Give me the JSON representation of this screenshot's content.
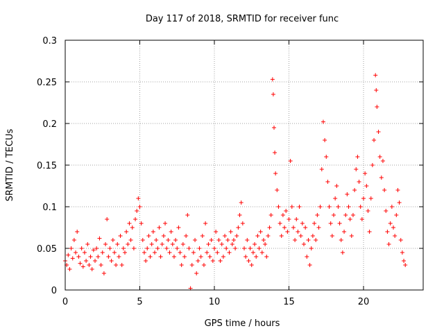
{
  "chart_data": {
    "type": "scatter",
    "title": "Day 117 of 2018, SRMTID for receiver func",
    "xlabel": "GPS time / hours",
    "ylabel": "SRMTID / TECUs",
    "xlim": [
      0,
      24
    ],
    "ylim": [
      0,
      0.3
    ],
    "x_ticks": [
      0,
      5,
      10,
      15,
      20
    ],
    "x_tick_labels": [
      "0",
      "5",
      "10",
      "15",
      "20"
    ],
    "y_ticks": [
      0,
      0.05,
      0.1,
      0.15,
      0.2,
      0.25,
      0.3
    ],
    "y_tick_labels": [
      "0",
      "0.05",
      "0.1",
      "0.15",
      "0.2",
      "0.25",
      "0.3"
    ],
    "grid": true,
    "marker": "+",
    "color": "#ff0000",
    "series": [
      {
        "name": "SRMTID",
        "points": [
          [
            0.0,
            0.035
          ],
          [
            0.1,
            0.03
          ],
          [
            0.2,
            0.042
          ],
          [
            0.3,
            0.025
          ],
          [
            0.4,
            0.05
          ],
          [
            0.5,
            0.038
          ],
          [
            0.6,
            0.06
          ],
          [
            0.7,
            0.045
          ],
          [
            0.8,
            0.07
          ],
          [
            0.9,
            0.04
          ],
          [
            1.0,
            0.032
          ],
          [
            1.1,
            0.05
          ],
          [
            1.2,
            0.028
          ],
          [
            1.3,
            0.045
          ],
          [
            1.4,
            0.035
          ],
          [
            1.5,
            0.055
          ],
          [
            1.6,
            0.03
          ],
          [
            1.7,
            0.04
          ],
          [
            1.8,
            0.025
          ],
          [
            1.9,
            0.048
          ],
          [
            2.0,
            0.035
          ],
          [
            2.1,
            0.05
          ],
          [
            2.2,
            0.04
          ],
          [
            2.3,
            0.062
          ],
          [
            2.4,
            0.03
          ],
          [
            2.5,
            0.045
          ],
          [
            2.6,
            0.02
          ],
          [
            2.7,
            0.055
          ],
          [
            2.8,
            0.085
          ],
          [
            2.9,
            0.04
          ],
          [
            3.0,
            0.05
          ],
          [
            3.1,
            0.035
          ],
          [
            3.2,
            0.06
          ],
          [
            3.3,
            0.045
          ],
          [
            3.4,
            0.03
          ],
          [
            3.5,
            0.055
          ],
          [
            3.6,
            0.04
          ],
          [
            3.7,
            0.065
          ],
          [
            3.8,
            0.03
          ],
          [
            3.9,
            0.05
          ],
          [
            4.0,
            0.045
          ],
          [
            4.1,
            0.07
          ],
          [
            4.2,
            0.055
          ],
          [
            4.3,
            0.08
          ],
          [
            4.4,
            0.06
          ],
          [
            4.5,
            0.075
          ],
          [
            4.6,
            0.05
          ],
          [
            4.7,
            0.085
          ],
          [
            4.8,
            0.095
          ],
          [
            4.9,
            0.11
          ],
          [
            5.0,
            0.1
          ],
          [
            5.1,
            0.08
          ],
          [
            5.2,
            0.06
          ],
          [
            5.3,
            0.045
          ],
          [
            5.4,
            0.035
          ],
          [
            5.5,
            0.05
          ],
          [
            5.6,
            0.065
          ],
          [
            5.7,
            0.04
          ],
          [
            5.8,
            0.055
          ],
          [
            5.9,
            0.07
          ],
          [
            6.0,
            0.045
          ],
          [
            6.1,
            0.06
          ],
          [
            6.2,
            0.05
          ],
          [
            6.3,
            0.075
          ],
          [
            6.4,
            0.04
          ],
          [
            6.5,
            0.055
          ],
          [
            6.6,
            0.065
          ],
          [
            6.7,
            0.08
          ],
          [
            6.8,
            0.05
          ],
          [
            6.9,
            0.06
          ],
          [
            7.0,
            0.045
          ],
          [
            7.1,
            0.07
          ],
          [
            7.2,
            0.055
          ],
          [
            7.3,
            0.04
          ],
          [
            7.4,
            0.06
          ],
          [
            7.5,
            0.05
          ],
          [
            7.6,
            0.075
          ],
          [
            7.7,
            0.045
          ],
          [
            7.8,
            0.03
          ],
          [
            7.9,
            0.055
          ],
          [
            8.0,
            0.04
          ],
          [
            8.1,
            0.065
          ],
          [
            8.2,
            0.09
          ],
          [
            8.3,
            0.05
          ],
          [
            8.4,
            0.002
          ],
          [
            8.5,
            0.03
          ],
          [
            8.6,
            0.045
          ],
          [
            8.7,
            0.06
          ],
          [
            8.8,
            0.02
          ],
          [
            8.9,
            0.035
          ],
          [
            9.0,
            0.05
          ],
          [
            9.1,
            0.04
          ],
          [
            9.2,
            0.065
          ],
          [
            9.3,
            0.03
          ],
          [
            9.4,
            0.08
          ],
          [
            9.5,
            0.045
          ],
          [
            9.6,
            0.055
          ],
          [
            9.7,
            0.04
          ],
          [
            9.8,
            0.06
          ],
          [
            9.9,
            0.035
          ],
          [
            10.0,
            0.05
          ],
          [
            10.1,
            0.07
          ],
          [
            10.2,
            0.045
          ],
          [
            10.3,
            0.06
          ],
          [
            10.4,
            0.035
          ],
          [
            10.5,
            0.055
          ],
          [
            10.6,
            0.04
          ],
          [
            10.7,
            0.065
          ],
          [
            10.8,
            0.05
          ],
          [
            10.9,
            0.06
          ],
          [
            11.0,
            0.045
          ],
          [
            11.1,
            0.07
          ],
          [
            11.2,
            0.055
          ],
          [
            11.3,
            0.06
          ],
          [
            11.4,
            0.05
          ],
          [
            11.5,
            0.065
          ],
          [
            11.6,
            0.075
          ],
          [
            11.7,
            0.09
          ],
          [
            11.8,
            0.105
          ],
          [
            11.9,
            0.08
          ],
          [
            12.0,
            0.05
          ],
          [
            12.1,
            0.04
          ],
          [
            12.2,
            0.06
          ],
          [
            12.3,
            0.035
          ],
          [
            12.4,
            0.05
          ],
          [
            12.5,
            0.03
          ],
          [
            12.6,
            0.045
          ],
          [
            12.7,
            0.055
          ],
          [
            12.8,
            0.04
          ],
          [
            12.9,
            0.065
          ],
          [
            13.0,
            0.05
          ],
          [
            13.1,
            0.07
          ],
          [
            13.2,
            0.045
          ],
          [
            13.3,
            0.06
          ],
          [
            13.4,
            0.055
          ],
          [
            13.5,
            0.04
          ],
          [
            13.6,
            0.065
          ],
          [
            13.7,
            0.075
          ],
          [
            13.8,
            0.09
          ],
          [
            13.9,
            0.253
          ],
          [
            13.95,
            0.235
          ],
          [
            14.0,
            0.195
          ],
          [
            14.05,
            0.165
          ],
          [
            14.1,
            0.14
          ],
          [
            14.2,
            0.12
          ],
          [
            14.3,
            0.1
          ],
          [
            14.4,
            0.08
          ],
          [
            14.5,
            0.065
          ],
          [
            14.6,
            0.09
          ],
          [
            14.7,
            0.075
          ],
          [
            14.8,
            0.095
          ],
          [
            14.9,
            0.07
          ],
          [
            15.0,
            0.085
          ],
          [
            15.1,
            0.155
          ],
          [
            15.2,
            0.1
          ],
          [
            15.3,
            0.075
          ],
          [
            15.4,
            0.06
          ],
          [
            15.5,
            0.085
          ],
          [
            15.6,
            0.07
          ],
          [
            15.7,
            0.1
          ],
          [
            15.8,
            0.065
          ],
          [
            15.9,
            0.08
          ],
          [
            16.0,
            0.055
          ],
          [
            16.1,
            0.075
          ],
          [
            16.2,
            0.04
          ],
          [
            16.3,
            0.06
          ],
          [
            16.4,
            0.03
          ],
          [
            16.5,
            0.05
          ],
          [
            16.6,
            0.065
          ],
          [
            16.7,
            0.08
          ],
          [
            16.8,
            0.06
          ],
          [
            16.9,
            0.09
          ],
          [
            17.0,
            0.075
          ],
          [
            17.1,
            0.1
          ],
          [
            17.2,
            0.145
          ],
          [
            17.3,
            0.202
          ],
          [
            17.4,
            0.18
          ],
          [
            17.5,
            0.16
          ],
          [
            17.6,
            0.13
          ],
          [
            17.7,
            0.1
          ],
          [
            17.8,
            0.08
          ],
          [
            17.9,
            0.065
          ],
          [
            18.0,
            0.09
          ],
          [
            18.1,
            0.11
          ],
          [
            18.2,
            0.125
          ],
          [
            18.3,
            0.1
          ],
          [
            18.4,
            0.08
          ],
          [
            18.5,
            0.06
          ],
          [
            18.6,
            0.045
          ],
          [
            18.7,
            0.07
          ],
          [
            18.8,
            0.09
          ],
          [
            18.9,
            0.115
          ],
          [
            19.0,
            0.1
          ],
          [
            19.1,
            0.085
          ],
          [
            19.2,
            0.065
          ],
          [
            19.3,
            0.09
          ],
          [
            19.4,
            0.12
          ],
          [
            19.5,
            0.145
          ],
          [
            19.6,
            0.16
          ],
          [
            19.7,
            0.13
          ],
          [
            19.8,
            0.1
          ],
          [
            19.9,
            0.085
          ],
          [
            20.0,
            0.11
          ],
          [
            20.1,
            0.14
          ],
          [
            20.2,
            0.125
          ],
          [
            20.3,
            0.095
          ],
          [
            20.4,
            0.07
          ],
          [
            20.5,
            0.11
          ],
          [
            20.6,
            0.15
          ],
          [
            20.7,
            0.18
          ],
          [
            20.8,
            0.258
          ],
          [
            20.85,
            0.24
          ],
          [
            20.9,
            0.22
          ],
          [
            21.0,
            0.19
          ],
          [
            21.1,
            0.16
          ],
          [
            21.2,
            0.135
          ],
          [
            21.3,
            0.155
          ],
          [
            21.4,
            0.12
          ],
          [
            21.5,
            0.095
          ],
          [
            21.6,
            0.07
          ],
          [
            21.7,
            0.055
          ],
          [
            21.8,
            0.08
          ],
          [
            21.9,
            0.1
          ],
          [
            22.0,
            0.075
          ],
          [
            22.1,
            0.065
          ],
          [
            22.2,
            0.09
          ],
          [
            22.3,
            0.12
          ],
          [
            22.4,
            0.105
          ],
          [
            22.5,
            0.06
          ],
          [
            22.6,
            0.045
          ],
          [
            22.7,
            0.035
          ],
          [
            22.8,
            0.03
          ]
        ]
      }
    ]
  }
}
